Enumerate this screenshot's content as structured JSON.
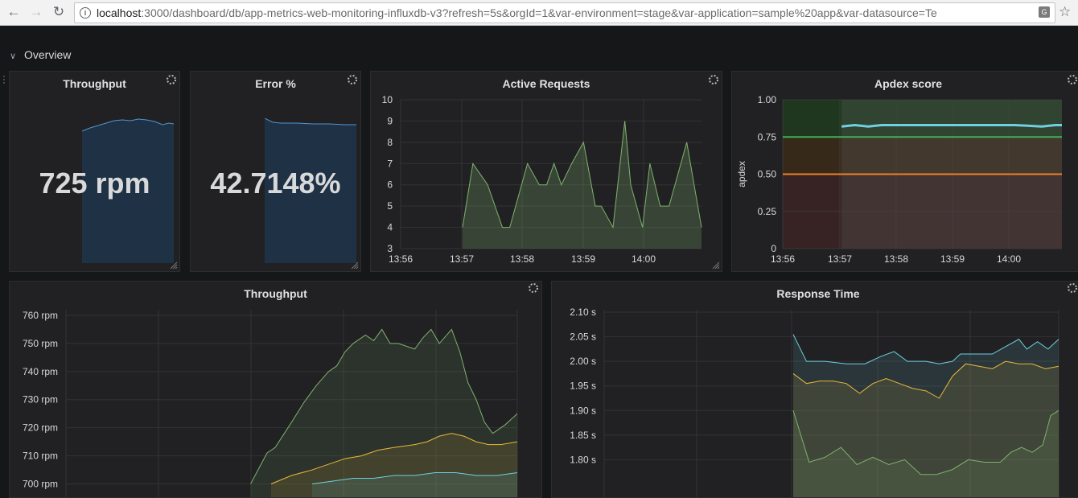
{
  "browser": {
    "back_icon": "arrow-left-icon",
    "forward_icon": "arrow-right-icon",
    "reload_icon": "reload-icon",
    "url_host": "localhost",
    "url_path": ":3000/dashboard/db/app-metrics-web-monitoring-influxdb-v3?refresh=5s&orgId=1&var-environment=stage&var-application=sample%20app&var-datasource=Te",
    "bookmark_icon": "star-icon"
  },
  "row": {
    "title": "Overview",
    "icon": "chevron-down-icon"
  },
  "panels": {
    "throughput_stat": {
      "title": "Throughput",
      "value": "725 rpm"
    },
    "error_stat": {
      "title": "Error %",
      "value": "42.7148%"
    },
    "active_requests": {
      "title": "Active Requests"
    },
    "apdex": {
      "title": "Apdex score",
      "ylabel": "apdex"
    },
    "throughput_graph": {
      "title": "Throughput"
    },
    "response_time": {
      "title": "Response Time"
    }
  },
  "chart_data": [
    {
      "id": "active_requests",
      "type": "area",
      "title": "Active Requests",
      "ylim": [
        3,
        10
      ],
      "yticks": [
        "3",
        "4",
        "5",
        "6",
        "7",
        "8",
        "9",
        "10"
      ],
      "xticks": [
        "13:56",
        "13:57",
        "13:58",
        "13:59",
        "14:00"
      ],
      "x_start": "13:56",
      "x_end": "14:01",
      "series": [
        {
          "color": "#7eb26d",
          "values": [
            [
              13.98,
              4
            ],
            [
              14.05,
              7
            ],
            [
              14.15,
              6
            ],
            [
              14.25,
              4
            ],
            [
              14.3,
              4
            ],
            [
              14.42,
              7
            ],
            [
              14.5,
              6
            ],
            [
              14.55,
              6
            ],
            [
              14.6,
              7
            ],
            [
              14.65,
              6
            ],
            [
              14.72,
              7
            ],
            [
              14.8,
              8
            ],
            [
              14.88,
              5
            ],
            [
              14.92,
              5
            ],
            [
              15.0,
              4
            ],
            [
              15.08,
              9
            ],
            [
              15.12,
              6
            ],
            [
              15.2,
              4
            ],
            [
              15.25,
              7
            ],
            [
              15.32,
              5
            ],
            [
              15.38,
              5
            ],
            [
              15.42,
              6
            ],
            [
              15.5,
              8
            ],
            [
              15.6,
              4
            ]
          ]
        }
      ]
    },
    {
      "id": "apdex",
      "type": "line",
      "title": "Apdex score",
      "ylabel": "apdex",
      "ylim": [
        0,
        1
      ],
      "yticks": [
        "0",
        "0.25",
        "0.50",
        "0.75",
        "1.00"
      ],
      "xticks": [
        "13:56",
        "13:57",
        "13:58",
        "13:59",
        "14:00"
      ],
      "thresholds": [
        {
          "value": 0.75,
          "color": "#3eb15b"
        },
        {
          "value": 0.5,
          "color": "#ed8128"
        }
      ],
      "series": [
        {
          "color": "#6ed0e0",
          "values": [
            [
              14.0,
              0.82
            ],
            [
              14.1,
              0.83
            ],
            [
              14.2,
              0.82
            ],
            [
              14.3,
              0.83
            ],
            [
              14.5,
              0.83
            ],
            [
              14.7,
              0.83
            ],
            [
              14.9,
              0.83
            ],
            [
              15.1,
              0.83
            ],
            [
              15.3,
              0.83
            ],
            [
              15.5,
              0.82
            ],
            [
              15.6,
              0.83
            ],
            [
              15.65,
              0.83
            ]
          ]
        }
      ]
    },
    {
      "id": "throughput_graph",
      "type": "area",
      "title": "Throughput",
      "ylim": [
        699,
        762
      ],
      "yticks": [
        "700 rpm",
        "710 rpm",
        "720 rpm",
        "730 rpm",
        "740 rpm",
        "750 rpm",
        "760 rpm"
      ],
      "series": [
        {
          "color": "#7eb26d",
          "values": [
            [
              0.45,
              700
            ],
            [
              0.49,
              711
            ],
            [
              0.51,
              713
            ],
            [
              0.55,
              722
            ],
            [
              0.58,
              729
            ],
            [
              0.61,
              735
            ],
            [
              0.64,
              740
            ],
            [
              0.66,
              742
            ],
            [
              0.68,
              747
            ],
            [
              0.7,
              750
            ],
            [
              0.73,
              753
            ],
            [
              0.75,
              751
            ],
            [
              0.77,
              755
            ],
            [
              0.79,
              750
            ],
            [
              0.81,
              750
            ],
            [
              0.83,
              749
            ],
            [
              0.85,
              748
            ],
            [
              0.87,
              752
            ],
            [
              0.89,
              755
            ],
            [
              0.91,
              750
            ],
            [
              0.94,
              755
            ],
            [
              0.96,
              747
            ],
            [
              0.98,
              736
            ],
            [
              1.0,
              730
            ],
            [
              1.02,
              722
            ],
            [
              1.04,
              718
            ],
            [
              1.07,
              721
            ],
            [
              1.1,
              725
            ]
          ]
        },
        {
          "color": "#eab839",
          "values": [
            [
              0.5,
              700
            ],
            [
              0.55,
              703
            ],
            [
              0.6,
              705
            ],
            [
              0.64,
              707
            ],
            [
              0.68,
              709
            ],
            [
              0.72,
              710
            ],
            [
              0.76,
              712
            ],
            [
              0.8,
              713
            ],
            [
              0.85,
              714
            ],
            [
              0.88,
              715
            ],
            [
              0.91,
              717
            ],
            [
              0.94,
              718
            ],
            [
              0.97,
              717
            ],
            [
              1.0,
              715
            ],
            [
              1.03,
              714
            ],
            [
              1.06,
              714
            ],
            [
              1.1,
              715
            ]
          ]
        },
        {
          "color": "#6ed0e0",
          "values": [
            [
              0.6,
              700
            ],
            [
              0.65,
              701
            ],
            [
              0.7,
              702
            ],
            [
              0.75,
              702
            ],
            [
              0.8,
              703
            ],
            [
              0.85,
              703
            ],
            [
              0.9,
              704
            ],
            [
              0.95,
              704
            ],
            [
              1.0,
              703
            ],
            [
              1.05,
              703
            ],
            [
              1.1,
              704
            ]
          ]
        }
      ]
    },
    {
      "id": "response_time",
      "type": "area",
      "title": "Response Time",
      "ylim": [
        1.745,
        2.105
      ],
      "yticks": [
        "1.80 s",
        "1.85 s",
        "1.90 s",
        "1.95 s",
        "2.00 s",
        "2.05 s",
        "2.10 s"
      ],
      "series": [
        {
          "color": "#6ed0e0",
          "values": [
            [
              0,
              2.055
            ],
            [
              0.05,
              2.0
            ],
            [
              0.12,
              2.0
            ],
            [
              0.2,
              1.995
            ],
            [
              0.27,
              1.995
            ],
            [
              0.33,
              2.01
            ],
            [
              0.38,
              2.02
            ],
            [
              0.43,
              2.0
            ],
            [
              0.5,
              2.0
            ],
            [
              0.55,
              1.995
            ],
            [
              0.6,
              2.0
            ],
            [
              0.63,
              2.015
            ],
            [
              0.68,
              2.015
            ],
            [
              0.75,
              2.015
            ],
            [
              0.8,
              2.03
            ],
            [
              0.85,
              2.045
            ],
            [
              0.88,
              2.025
            ],
            [
              0.92,
              2.04
            ],
            [
              0.96,
              2.025
            ],
            [
              1.0,
              2.045
            ]
          ]
        },
        {
          "color": "#eab839",
          "values": [
            [
              0,
              1.975
            ],
            [
              0.05,
              1.955
            ],
            [
              0.1,
              1.96
            ],
            [
              0.15,
              1.96
            ],
            [
              0.2,
              1.955
            ],
            [
              0.25,
              1.935
            ],
            [
              0.3,
              1.955
            ],
            [
              0.35,
              1.965
            ],
            [
              0.4,
              1.955
            ],
            [
              0.45,
              1.945
            ],
            [
              0.5,
              1.94
            ],
            [
              0.55,
              1.925
            ],
            [
              0.6,
              1.97
            ],
            [
              0.65,
              1.995
            ],
            [
              0.7,
              1.99
            ],
            [
              0.75,
              1.985
            ],
            [
              0.8,
              2.0
            ],
            [
              0.85,
              1.995
            ],
            [
              0.9,
              1.995
            ],
            [
              0.95,
              1.985
            ],
            [
              1.0,
              1.99
            ]
          ]
        },
        {
          "color": "#7eb26d",
          "values": [
            [
              0,
              1.9
            ],
            [
              0.06,
              1.795
            ],
            [
              0.12,
              1.805
            ],
            [
              0.18,
              1.825
            ],
            [
              0.24,
              1.79
            ],
            [
              0.3,
              1.805
            ],
            [
              0.36,
              1.79
            ],
            [
              0.42,
              1.8
            ],
            [
              0.48,
              1.77
            ],
            [
              0.54,
              1.77
            ],
            [
              0.6,
              1.78
            ],
            [
              0.66,
              1.8
            ],
            [
              0.72,
              1.795
            ],
            [
              0.78,
              1.795
            ],
            [
              0.82,
              1.815
            ],
            [
              0.86,
              1.825
            ],
            [
              0.9,
              1.815
            ],
            [
              0.94,
              1.83
            ],
            [
              0.97,
              1.89
            ],
            [
              1.0,
              1.9
            ]
          ]
        }
      ]
    }
  ]
}
